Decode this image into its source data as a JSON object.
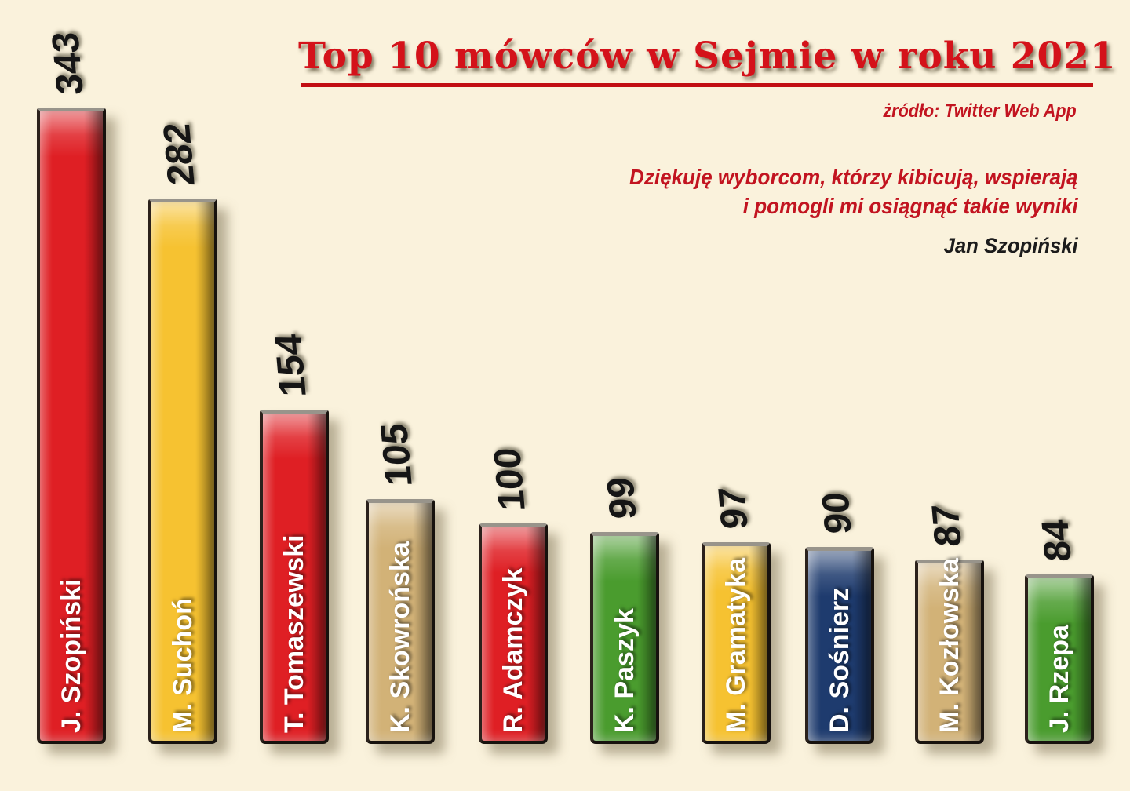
{
  "title": "Top 10 mówców w Sejmie w roku 2021",
  "source": "żródło: Twitter Web App",
  "quote": {
    "line1": "Dziękuję  wyborcom, którzy kibicują, wspierają",
    "line2": "i  pomogli mi osiągnąć takie wyniki",
    "attribution": "Jan Szopiński"
  },
  "colors": {
    "background": "#faf2dc",
    "title_red": "#d4121a",
    "underline_red": "#c20e13",
    "quote_red": "#c21420",
    "text_black": "#1c1c1c",
    "bar_border": "#17120e",
    "bar_top_cap_gray": "#98948b",
    "bar_red": "#df1f24",
    "bar_yellow": "#f6c231",
    "bar_tan": "#d2b277",
    "bar_green": "#4a9c2e",
    "bar_navy": "#1e3b6e"
  },
  "chart_data": {
    "type": "bar",
    "title": "Top 10 mówców w Sejmie w roku 2021",
    "source": "żródło: Twitter Web App",
    "orientation": "vertical",
    "axes": "hidden",
    "grid": false,
    "legend": "none",
    "value_labels": "above bars, rotated vertical",
    "category_labels": "inside bars, rotated vertical, white",
    "background": "#faf2dc",
    "categories": [
      "J. Szopiński",
      "M. Suchoń",
      "T. Tomaszewski",
      "K. Skowrońska",
      "R. Adamczyk",
      "K. Paszyk",
      "M. Gramatyka",
      "D. Sośnierz",
      "M. Kozłowska",
      "J. Rzepa"
    ],
    "values": [
      343,
      282,
      154,
      105,
      100,
      99,
      97,
      90,
      87,
      84
    ],
    "bars": [
      {
        "name": "J. Szopiński",
        "value": "343",
        "color": "#df1f24"
      },
      {
        "name": "M. Suchoń",
        "value": "282",
        "color": "#f6c231"
      },
      {
        "name": "T. Tomaszewski",
        "value": "154",
        "color": "#df1f24"
      },
      {
        "name": "K. Skowrońska",
        "value": "105",
        "color": "#d2b277"
      },
      {
        "name": "R. Adamczyk",
        "value": "100",
        "color": "#df1f24"
      },
      {
        "name": "K. Paszyk",
        "value": "99",
        "color": "#4a9c2e"
      },
      {
        "name": "M. Gramatyka",
        "value": "97",
        "color": "#f6c231"
      },
      {
        "name": "D. Sośnierz",
        "value": "90",
        "color": "#1e3b6e"
      },
      {
        "name": "M. Kozłowska",
        "value": "87",
        "color": "#d2b277"
      },
      {
        "name": "J. Rzepa",
        "value": "84",
        "color": "#4a9c2e"
      }
    ]
  }
}
